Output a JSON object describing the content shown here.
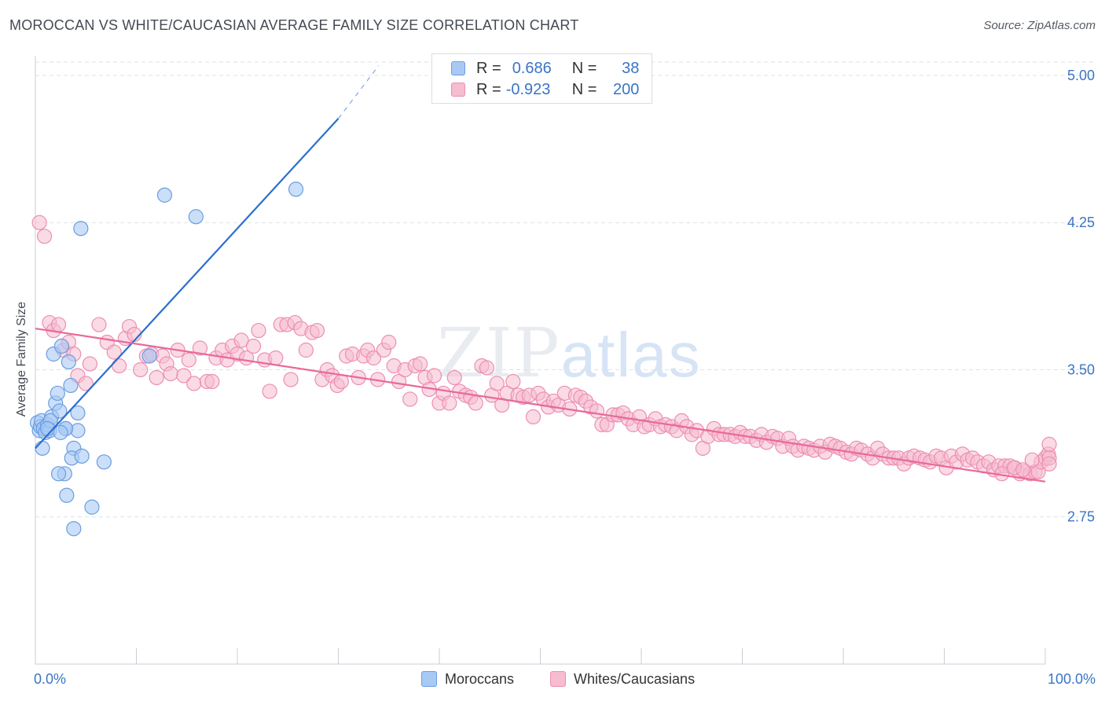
{
  "title": "MOROCCAN VS WHITE/CAUCASIAN AVERAGE FAMILY SIZE CORRELATION CHART",
  "source": "Source: ZipAtlas.com",
  "watermark": {
    "zip": "ZIP",
    "atlas": "atlas"
  },
  "legend": {
    "r_label": "R =",
    "n_label": "N =",
    "rows": [
      {
        "r": "0.686",
        "n": "38"
      },
      {
        "r": "-0.923",
        "n": "200"
      }
    ]
  },
  "bottom_legend": [
    "Moroccans",
    "Whites/Caucasians"
  ],
  "colors": {
    "blue_fill": "#a9c9f5",
    "blue_stroke": "#6a9ee0",
    "blue_line": "#2a6fd0",
    "pink_fill": "#f6bcd0",
    "pink_stroke": "#ec8fb0",
    "pink_line": "#e8699a",
    "grid": "#dde2e8",
    "tick_text": "#3a75c4"
  },
  "chart_data": {
    "type": "scatter",
    "title": "MOROCCAN VS WHITE/CAUCASIAN AVERAGE FAMILY SIZE CORRELATION CHART",
    "xlabel": "",
    "ylabel": "Average Family Size",
    "xlim": [
      0,
      100
    ],
    "ylim": [
      2.0,
      5.1
    ],
    "x_tick_labels": [
      "0.0%",
      "100.0%"
    ],
    "y_ticks": [
      2.75,
      3.5,
      4.25,
      5.0
    ],
    "y_tick_labels": [
      "2.75",
      "3.50",
      "4.25",
      "5.00"
    ],
    "grid": true,
    "legend_position": "top-center",
    "series": [
      {
        "name": "Moroccans",
        "r": 0.686,
        "n": 38,
        "trend": {
          "x0": 0,
          "y0": 3.1,
          "x1": 30,
          "y1": 4.78,
          "dashed_to_x": 34,
          "dashed_to_y": 5.05
        },
        "points": [
          [
            0.2,
            3.23
          ],
          [
            0.4,
            3.19
          ],
          [
            0.5,
            3.21
          ],
          [
            0.6,
            3.24
          ],
          [
            0.8,
            3.2
          ],
          [
            1.0,
            3.18
          ],
          [
            1.2,
            3.22
          ],
          [
            1.4,
            3.19
          ],
          [
            0.7,
            3.1
          ],
          [
            1.6,
            3.26
          ],
          [
            1.5,
            3.24
          ],
          [
            2.0,
            3.33
          ],
          [
            1.8,
            3.58
          ],
          [
            2.2,
            3.38
          ],
          [
            2.4,
            3.29
          ],
          [
            2.6,
            3.62
          ],
          [
            3.0,
            3.2
          ],
          [
            3.3,
            3.54
          ],
          [
            3.5,
            3.42
          ],
          [
            3.8,
            3.1
          ],
          [
            4.2,
            3.19
          ],
          [
            4.2,
            3.28
          ],
          [
            3.6,
            3.05
          ],
          [
            2.9,
            2.97
          ],
          [
            2.3,
            2.97
          ],
          [
            3.1,
            2.86
          ],
          [
            3.8,
            2.69
          ],
          [
            5.6,
            2.8
          ],
          [
            4.6,
            3.06
          ],
          [
            6.8,
            3.03
          ],
          [
            3.0,
            3.2
          ],
          [
            1.2,
            3.2
          ],
          [
            4.5,
            4.22
          ],
          [
            11.3,
            3.57
          ],
          [
            12.8,
            4.39
          ],
          [
            15.9,
            4.28
          ],
          [
            25.8,
            4.42
          ],
          [
            2.5,
            3.18
          ]
        ]
      },
      {
        "name": "Whites/Caucasians",
        "r": -0.923,
        "n": 200,
        "trend": {
          "x0": 0,
          "y0": 3.71,
          "x1": 100,
          "y1": 2.93
        },
        "points": [
          [
            0.4,
            4.25
          ],
          [
            0.9,
            4.18
          ],
          [
            1.4,
            3.74
          ],
          [
            1.8,
            3.7
          ],
          [
            2.3,
            3.73
          ],
          [
            2.8,
            3.6
          ],
          [
            3.3,
            3.64
          ],
          [
            3.8,
            3.58
          ],
          [
            4.2,
            3.47
          ],
          [
            5.0,
            3.43
          ],
          [
            5.4,
            3.53
          ],
          [
            6.3,
            3.73
          ],
          [
            7.1,
            3.64
          ],
          [
            7.8,
            3.59
          ],
          [
            8.3,
            3.52
          ],
          [
            8.9,
            3.66
          ],
          [
            9.3,
            3.72
          ],
          [
            9.8,
            3.68
          ],
          [
            10.4,
            3.5
          ],
          [
            11.0,
            3.57
          ],
          [
            11.5,
            3.58
          ],
          [
            12.0,
            3.46
          ],
          [
            12.6,
            3.57
          ],
          [
            13.0,
            3.53
          ],
          [
            13.4,
            3.48
          ],
          [
            14.1,
            3.6
          ],
          [
            14.7,
            3.47
          ],
          [
            15.2,
            3.55
          ],
          [
            15.7,
            3.43
          ],
          [
            16.3,
            3.61
          ],
          [
            17.0,
            3.44
          ],
          [
            17.5,
            3.44
          ],
          [
            17.9,
            3.56
          ],
          [
            18.5,
            3.6
          ],
          [
            19.0,
            3.55
          ],
          [
            19.5,
            3.62
          ],
          [
            20.0,
            3.58
          ],
          [
            20.4,
            3.65
          ],
          [
            20.9,
            3.56
          ],
          [
            21.6,
            3.62
          ],
          [
            22.1,
            3.7
          ],
          [
            22.7,
            3.55
          ],
          [
            23.2,
            3.39
          ],
          [
            23.8,
            3.56
          ],
          [
            24.3,
            3.73
          ],
          [
            24.9,
            3.73
          ],
          [
            25.3,
            3.45
          ],
          [
            25.7,
            3.74
          ],
          [
            26.3,
            3.71
          ],
          [
            26.8,
            3.6
          ],
          [
            27.4,
            3.69
          ],
          [
            27.9,
            3.7
          ],
          [
            28.4,
            3.45
          ],
          [
            28.9,
            3.5
          ],
          [
            29.4,
            3.47
          ],
          [
            29.9,
            3.42
          ],
          [
            30.3,
            3.44
          ],
          [
            30.8,
            3.57
          ],
          [
            31.4,
            3.58
          ],
          [
            32.0,
            3.46
          ],
          [
            32.5,
            3.57
          ],
          [
            32.9,
            3.6
          ],
          [
            33.5,
            3.56
          ],
          [
            33.9,
            3.45
          ],
          [
            34.5,
            3.6
          ],
          [
            35.0,
            3.64
          ],
          [
            35.5,
            3.52
          ],
          [
            36.0,
            3.44
          ],
          [
            36.6,
            3.5
          ],
          [
            37.1,
            3.35
          ],
          [
            37.6,
            3.52
          ],
          [
            38.1,
            3.53
          ],
          [
            38.6,
            3.46
          ],
          [
            39.0,
            3.4
          ],
          [
            39.5,
            3.47
          ],
          [
            40.0,
            3.33
          ],
          [
            40.4,
            3.38
          ],
          [
            41.0,
            3.33
          ],
          [
            41.5,
            3.46
          ],
          [
            42.0,
            3.39
          ],
          [
            42.6,
            3.37
          ],
          [
            43.1,
            3.36
          ],
          [
            43.6,
            3.33
          ],
          [
            44.2,
            3.52
          ],
          [
            44.7,
            3.51
          ],
          [
            45.2,
            3.37
          ],
          [
            45.7,
            3.43
          ],
          [
            46.2,
            3.32
          ],
          [
            46.7,
            3.38
          ],
          [
            47.3,
            3.44
          ],
          [
            47.8,
            3.37
          ],
          [
            48.3,
            3.36
          ],
          [
            48.9,
            3.37
          ],
          [
            49.3,
            3.26
          ],
          [
            49.8,
            3.38
          ],
          [
            50.3,
            3.35
          ],
          [
            50.8,
            3.31
          ],
          [
            51.3,
            3.34
          ],
          [
            51.8,
            3.32
          ],
          [
            52.4,
            3.38
          ],
          [
            52.9,
            3.3
          ],
          [
            53.5,
            3.37
          ],
          [
            54.0,
            3.36
          ],
          [
            54.5,
            3.34
          ],
          [
            55.0,
            3.31
          ],
          [
            55.6,
            3.29
          ],
          [
            56.1,
            3.22
          ],
          [
            56.6,
            3.22
          ],
          [
            57.2,
            3.27
          ],
          [
            57.7,
            3.27
          ],
          [
            58.2,
            3.28
          ],
          [
            58.7,
            3.25
          ],
          [
            59.2,
            3.22
          ],
          [
            59.8,
            3.26
          ],
          [
            60.3,
            3.21
          ],
          [
            60.8,
            3.22
          ],
          [
            61.4,
            3.25
          ],
          [
            61.9,
            3.21
          ],
          [
            62.4,
            3.22
          ],
          [
            63.0,
            3.21
          ],
          [
            63.5,
            3.19
          ],
          [
            64.0,
            3.24
          ],
          [
            64.5,
            3.21
          ],
          [
            65.0,
            3.17
          ],
          [
            65.5,
            3.19
          ],
          [
            66.1,
            3.1
          ],
          [
            66.6,
            3.16
          ],
          [
            67.2,
            3.2
          ],
          [
            67.7,
            3.17
          ],
          [
            68.2,
            3.17
          ],
          [
            68.8,
            3.17
          ],
          [
            69.3,
            3.16
          ],
          [
            69.8,
            3.18
          ],
          [
            70.3,
            3.16
          ],
          [
            70.8,
            3.16
          ],
          [
            71.4,
            3.14
          ],
          [
            71.9,
            3.17
          ],
          [
            72.4,
            3.13
          ],
          [
            73.0,
            3.16
          ],
          [
            73.5,
            3.15
          ],
          [
            74.0,
            3.11
          ],
          [
            74.6,
            3.15
          ],
          [
            75.0,
            3.11
          ],
          [
            75.5,
            3.09
          ],
          [
            76.1,
            3.11
          ],
          [
            76.6,
            3.1
          ],
          [
            77.1,
            3.09
          ],
          [
            77.7,
            3.11
          ],
          [
            78.2,
            3.08
          ],
          [
            78.7,
            3.12
          ],
          [
            79.2,
            3.11
          ],
          [
            79.7,
            3.1
          ],
          [
            80.3,
            3.08
          ],
          [
            80.8,
            3.07
          ],
          [
            81.3,
            3.1
          ],
          [
            81.8,
            3.09
          ],
          [
            82.4,
            3.07
          ],
          [
            82.9,
            3.05
          ],
          [
            83.4,
            3.1
          ],
          [
            83.9,
            3.07
          ],
          [
            84.5,
            3.05
          ],
          [
            85.0,
            3.05
          ],
          [
            85.5,
            3.05
          ],
          [
            86.0,
            3.02
          ],
          [
            86.5,
            3.05
          ],
          [
            87.0,
            3.06
          ],
          [
            87.6,
            3.05
          ],
          [
            88.1,
            3.04
          ],
          [
            88.6,
            3.03
          ],
          [
            89.2,
            3.06
          ],
          [
            89.7,
            3.05
          ],
          [
            90.2,
            3.0
          ],
          [
            90.7,
            3.06
          ],
          [
            91.2,
            3.03
          ],
          [
            91.8,
            3.07
          ],
          [
            92.3,
            3.04
          ],
          [
            92.8,
            3.05
          ],
          [
            93.3,
            3.03
          ],
          [
            93.9,
            3.01
          ],
          [
            94.4,
            3.03
          ],
          [
            94.9,
            2.99
          ],
          [
            95.4,
            3.01
          ],
          [
            96.0,
            3.01
          ],
          [
            96.5,
            3.01
          ],
          [
            97.0,
            3.0
          ],
          [
            97.5,
            2.97
          ],
          [
            98.0,
            2.98
          ],
          [
            98.5,
            2.97
          ],
          [
            99.0,
            2.98
          ],
          [
            99.3,
            2.98
          ],
          [
            99.6,
            3.03
          ],
          [
            100.0,
            3.05
          ],
          [
            100.3,
            3.07
          ],
          [
            100.6,
            3.12
          ],
          [
            101.1,
            3.05
          ],
          [
            101.6,
            3.02
          ],
          [
            95.7,
            2.97
          ],
          [
            96.9,
            3.0
          ],
          [
            97.8,
            2.99
          ],
          [
            98.7,
            3.04
          ]
        ]
      }
    ]
  }
}
